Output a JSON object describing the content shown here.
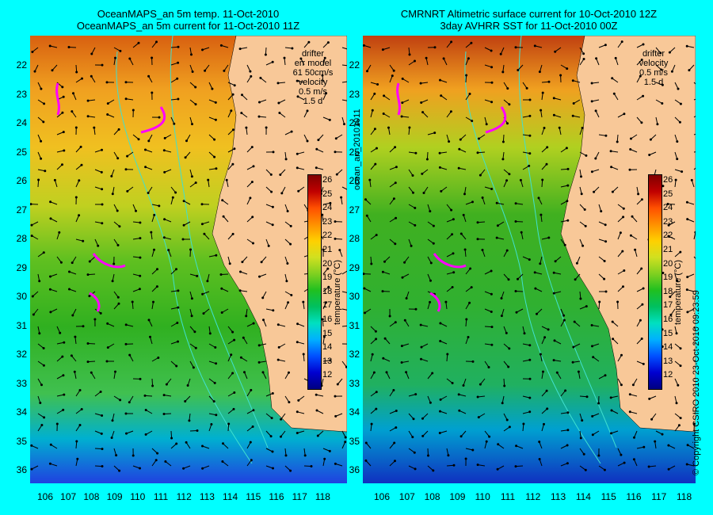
{
  "left_panel": {
    "title_line1": "OceanMAPS_an 5m temp. 11-Oct-2010",
    "title_line2": "OceanMAPS_an 5m current for 11-Oct-2010 11Z",
    "legend": {
      "drifter": "drifter",
      "err_model": "err model",
      "err_value": "61 50cm/s",
      "velocity": "velocity",
      "velocity_value": "0.5 m/s",
      "duration": "1.5 d"
    }
  },
  "right_panel": {
    "title_line1": "CMRNRT Altimetric surface current for 10-Oct-2010 12Z",
    "title_line2": "3day AVHRR SST for 11-Oct-2010 00Z",
    "legend": {
      "drifter": "drifter",
      "velocity": "velocity",
      "velocity_value": "0.5 m/s",
      "duration": "1.5 d"
    }
  },
  "latitude_labels": [
    "22",
    "23",
    "24",
    "25",
    "26",
    "27",
    "28",
    "29",
    "30",
    "31",
    "32",
    "33",
    "34",
    "35",
    "36"
  ],
  "longitude_labels": [
    "106",
    "107",
    "108",
    "109",
    "110",
    "111",
    "112",
    "113",
    "114",
    "115",
    "116",
    "117",
    "118"
  ],
  "colorbar": {
    "ticks": [
      "26",
      "25",
      "24",
      "23",
      "22",
      "21",
      "20",
      "19",
      "18",
      "17",
      "16",
      "15",
      "14",
      "13",
      "12"
    ],
    "label": "temperature (°C)"
  },
  "side_text_middle": "ocean_an_20101011",
  "side_text_right": "© Copyright CSIRO 2010   23-Oct-2010 09:23:59",
  "colors": {
    "background": "#00ffff",
    "land": "#f8c898",
    "drifter": "#ff00ff",
    "warm": "#e07010",
    "mid": "#40c020",
    "cool": "#00b0d0"
  }
}
